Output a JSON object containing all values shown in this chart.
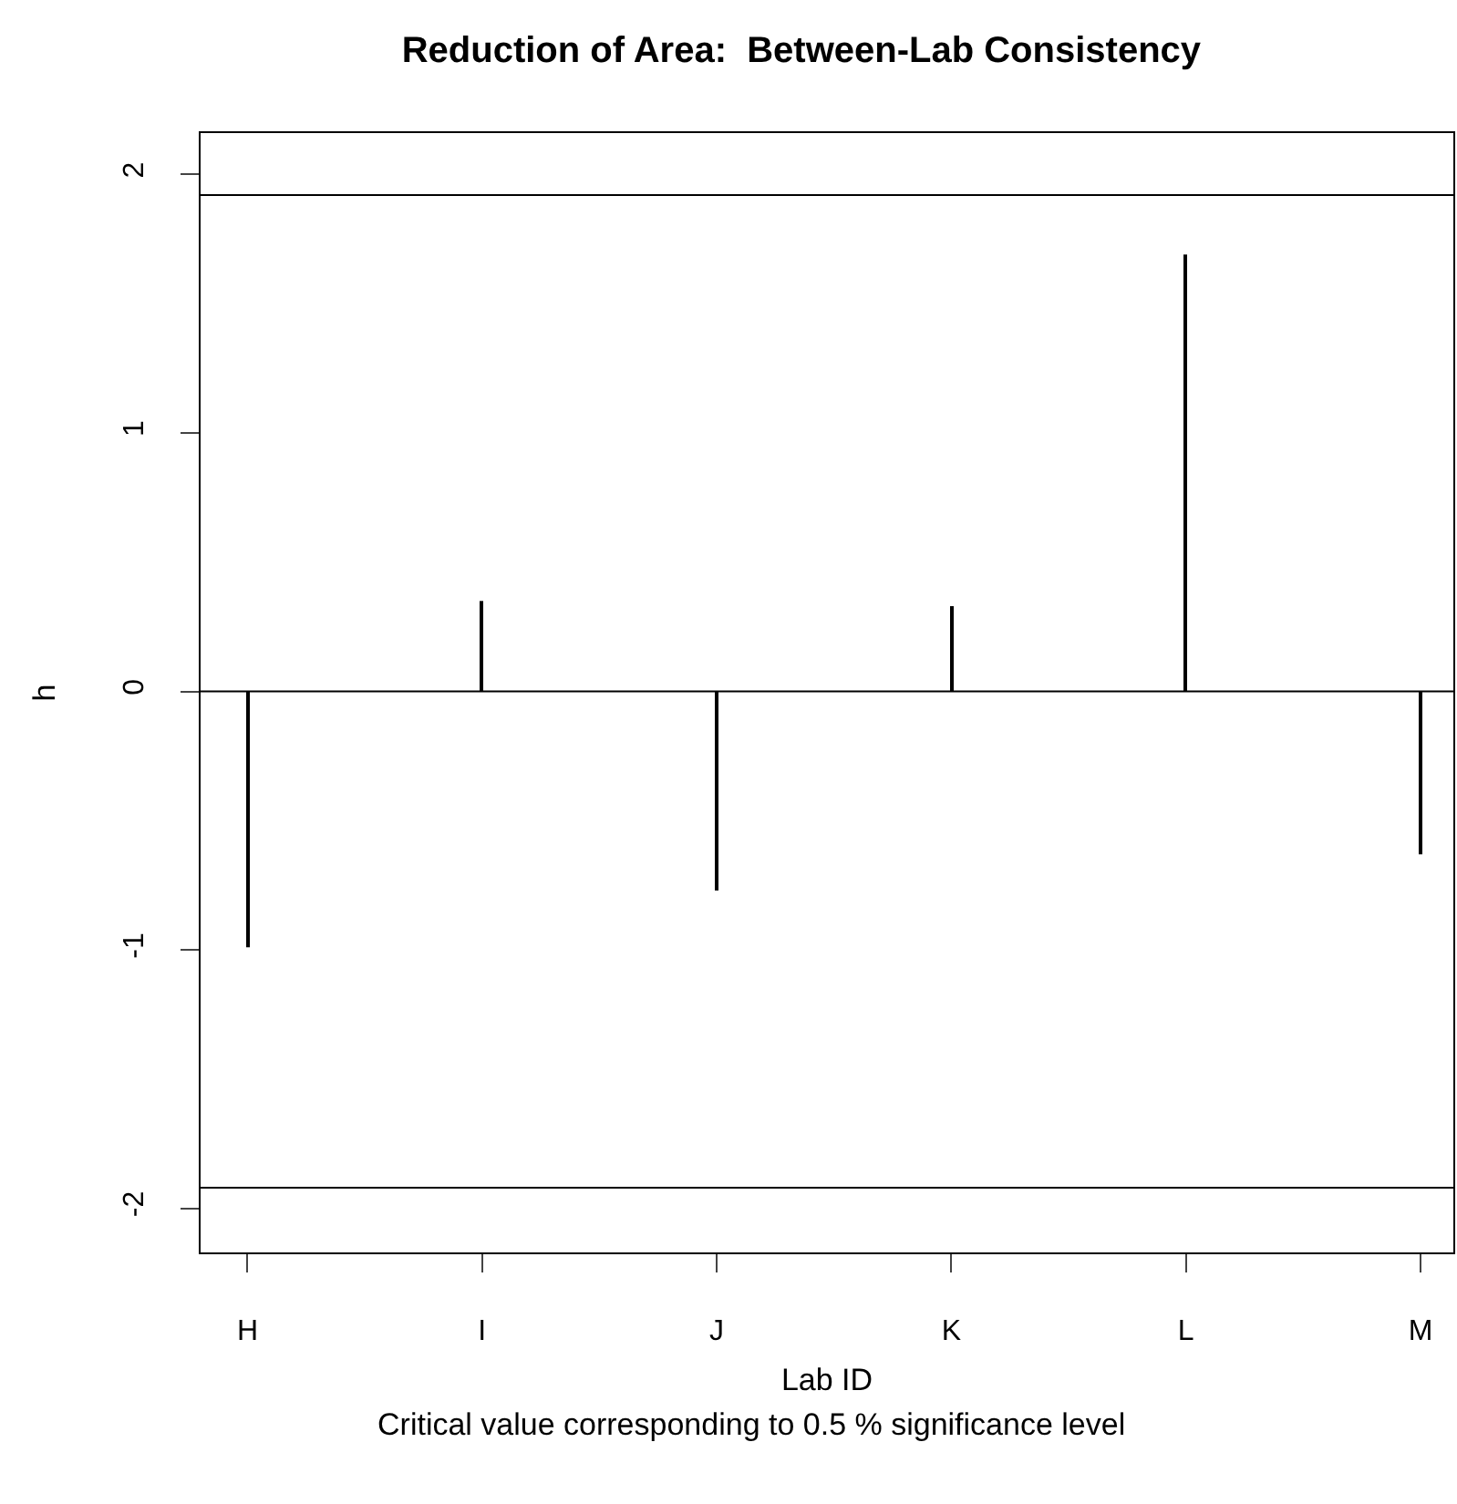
{
  "chart_data": {
    "type": "bar",
    "title": "Reduction of Area:  Between-Lab Consistency",
    "xlabel": "Lab ID",
    "ylabel": "h",
    "categories": [
      "H",
      "I",
      "J",
      "K",
      "L",
      "M"
    ],
    "values": [
      -0.99,
      0.35,
      -0.77,
      0.33,
      1.69,
      -0.63
    ],
    "color": "#000000",
    "ylim": [
      -2.17,
      2.16
    ],
    "yticks": [
      -2,
      -1,
      0,
      1,
      2
    ],
    "legend": false,
    "ref_lines": [
      {
        "axis": "y",
        "value": 0,
        "color": "#000000"
      },
      {
        "axis": "y",
        "value": 1.92,
        "color": "#000000"
      },
      {
        "axis": "y",
        "value": -1.92,
        "color": "#000000"
      }
    ],
    "annotations": [
      "Critical value corresponding to 0.5 % significance level"
    ]
  }
}
